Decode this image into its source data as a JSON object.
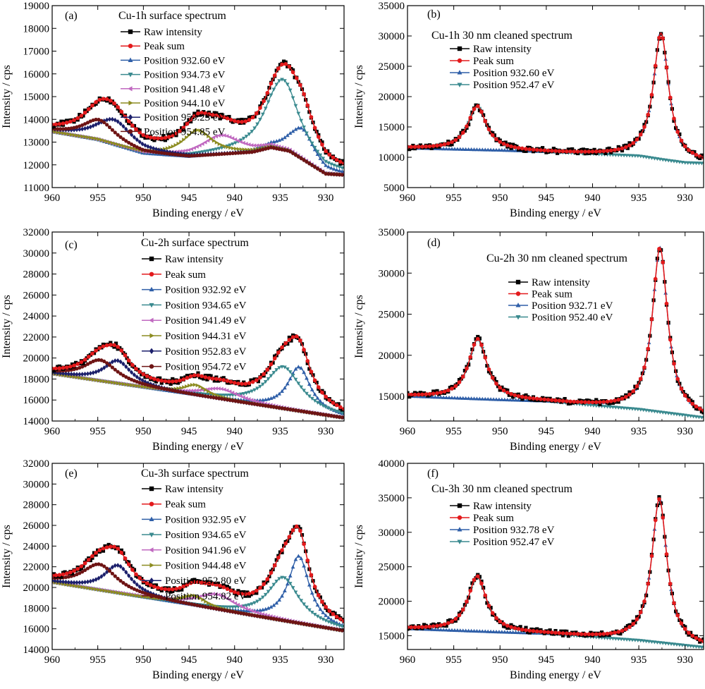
{
  "figure": {
    "xlabel": "Binding energy / eV",
    "ylabel": "Intensity / cps"
  },
  "chart_data": [
    {
      "panel": "a",
      "tag": "(a)",
      "type": "line",
      "title": "Cu-1h surface spectrum",
      "xlabel": "Binding energy / eV",
      "ylabel": "Intensity / cps",
      "x_reversed": true,
      "xlim": [
        960,
        928
      ],
      "ylim": [
        11000,
        19000
      ],
      "xticks": [
        960,
        955,
        950,
        945,
        940,
        935,
        930
      ],
      "yticks": [
        11000,
        12000,
        13000,
        14000,
        15000,
        16000,
        17000,
        18000,
        19000
      ],
      "background": [
        [
          960,
          13450
        ],
        [
          955,
          13100
        ],
        [
          950,
          12500
        ],
        [
          945,
          12350
        ],
        [
          938,
          12550
        ],
        [
          936,
          12750
        ],
        [
          934,
          12600
        ],
        [
          930,
          11600
        ],
        [
          928,
          11550
        ]
      ],
      "components": [
        {
          "name": "Raw intensity",
          "color": "#000000",
          "marker": "square"
        },
        {
          "name": "Peak sum",
          "color": "#e31a1c",
          "marker": "circle"
        },
        {
          "name": "Position 932.60 eV",
          "color": "#2f5fa8",
          "marker": "triangle-up",
          "center": 932.6,
          "height": 1350,
          "width": 1.6
        },
        {
          "name": "Position 934.73 eV",
          "color": "#3a8a8f",
          "marker": "triangle-down",
          "center": 934.73,
          "height": 3100,
          "width": 2.2
        },
        {
          "name": "Position 941.48 eV",
          "color": "#c069c0",
          "marker": "triangle-left",
          "center": 941.48,
          "height": 850,
          "width": 2.6
        },
        {
          "name": "Position 944.10 eV",
          "color": "#8c8c20",
          "marker": "triangle-right",
          "center": 944.1,
          "height": 1150,
          "width": 2.0
        },
        {
          "name": "Position 953.23 eV",
          "color": "#1b1f6b",
          "marker": "diamond",
          "center": 953.23,
          "height": 1100,
          "width": 2.4
        },
        {
          "name": "Position 954.85 eV",
          "color": "#6e1414",
          "marker": "circle",
          "center": 954.85,
          "height": 900,
          "width": 2.2
        }
      ]
    },
    {
      "panel": "b",
      "tag": "(b)",
      "type": "line",
      "title": "Cu-1h 30 nm cleaned spectrum",
      "xlabel": "Binding energy / eV",
      "ylabel": "Intensity / cps",
      "x_reversed": true,
      "xlim": [
        960,
        928
      ],
      "ylim": [
        5000,
        35000
      ],
      "xticks": [
        960,
        955,
        950,
        945,
        940,
        935,
        930
      ],
      "yticks": [
        5000,
        10000,
        15000,
        20000,
        25000,
        30000,
        35000
      ],
      "background": [
        [
          960,
          11500
        ],
        [
          950,
          11100
        ],
        [
          940,
          10500
        ],
        [
          935,
          10200
        ],
        [
          932,
          9500
        ],
        [
          930,
          9100
        ],
        [
          928,
          9000
        ]
      ],
      "components": [
        {
          "name": "Raw intensity",
          "color": "#000000",
          "marker": "square"
        },
        {
          "name": "Peak sum",
          "color": "#e31a1c",
          "marker": "circle"
        },
        {
          "name": "Position 932.60 eV",
          "color": "#2f5fa8",
          "marker": "triangle-up",
          "center": 932.6,
          "height": 20800,
          "width": 1.0
        },
        {
          "name": "Position 952.47 eV",
          "color": "#3a8a8f",
          "marker": "triangle-down",
          "center": 952.47,
          "height": 7200,
          "width": 1.2
        }
      ]
    },
    {
      "panel": "c",
      "tag": "(c)",
      "type": "line",
      "title": "Cu-2h surface spectrum",
      "xlabel": "Binding energy / eV",
      "ylabel": "Intensity / cps",
      "x_reversed": true,
      "xlim": [
        960,
        928
      ],
      "ylim": [
        14000,
        32000
      ],
      "xticks": [
        960,
        955,
        950,
        945,
        940,
        935,
        930
      ],
      "yticks": [
        14000,
        16000,
        18000,
        20000,
        22000,
        24000,
        26000,
        28000,
        30000,
        32000
      ],
      "background": [
        [
          960,
          18500
        ],
        [
          928,
          14300
        ]
      ],
      "components": [
        {
          "name": "Raw intensity",
          "color": "#000000",
          "marker": "square"
        },
        {
          "name": "Peak sum",
          "color": "#e31a1c",
          "marker": "circle"
        },
        {
          "name": "Position 932.92 eV",
          "color": "#2f5fa8",
          "marker": "triangle-up",
          "center": 932.92,
          "height": 4200,
          "width": 1.5
        },
        {
          "name": "Position 934.65 eV",
          "color": "#3a8a8f",
          "marker": "triangle-down",
          "center": 934.65,
          "height": 4000,
          "width": 2.3
        },
        {
          "name": "Position 941.49 eV",
          "color": "#c069c0",
          "marker": "triangle-left",
          "center": 941.49,
          "height": 1000,
          "width": 2.6
        },
        {
          "name": "Position 944.31 eV",
          "color": "#8c8c20",
          "marker": "triangle-right",
          "center": 944.31,
          "height": 1000,
          "width": 1.6
        },
        {
          "name": "Position 952.83 eV",
          "color": "#1b1f6b",
          "marker": "diamond",
          "center": 952.83,
          "height": 2200,
          "width": 1.8
        },
        {
          "name": "Position 954.72 eV",
          "color": "#6e1414",
          "marker": "circle",
          "center": 954.72,
          "height": 2000,
          "width": 2.2
        }
      ]
    },
    {
      "panel": "d",
      "tag": "(d)",
      "type": "line",
      "title": "Cu-2h 30 nm cleaned spectrum",
      "xlabel": "Binding energy / eV",
      "ylabel": "Intensity / cps",
      "x_reversed": true,
      "xlim": [
        960,
        928
      ],
      "ylim": [
        12000,
        35000
      ],
      "xticks": [
        960,
        955,
        950,
        945,
        940,
        935,
        930
      ],
      "yticks": [
        15000,
        20000,
        25000,
        30000,
        35000
      ],
      "background": [
        [
          960,
          15000
        ],
        [
          945,
          14300
        ],
        [
          935,
          13400
        ],
        [
          928,
          12400
        ]
      ],
      "components": [
        {
          "name": "Raw intensity",
          "color": "#000000",
          "marker": "square"
        },
        {
          "name": "Peak sum",
          "color": "#e31a1c",
          "marker": "circle"
        },
        {
          "name": "Position 932.71 eV",
          "color": "#2f5fa8",
          "marker": "triangle-up",
          "center": 932.71,
          "height": 20000,
          "width": 1.0
        },
        {
          "name": "Position 952.40 eV",
          "color": "#3a8a8f",
          "marker": "triangle-down",
          "center": 952.4,
          "height": 7300,
          "width": 1.2
        }
      ]
    },
    {
      "panel": "e",
      "tag": "(e)",
      "type": "line",
      "title": "Cu-3h surface spectrum",
      "xlabel": "Binding energy / eV",
      "ylabel": "Intensity / cps",
      "x_reversed": true,
      "xlim": [
        960,
        928
      ],
      "ylim": [
        14000,
        32000
      ],
      "xticks": [
        960,
        955,
        950,
        945,
        940,
        935,
        930
      ],
      "yticks": [
        14000,
        16000,
        18000,
        20000,
        22000,
        24000,
        26000,
        28000,
        30000,
        32000
      ],
      "background": [
        [
          960,
          20500
        ],
        [
          928,
          15800
        ]
      ],
      "components": [
        {
          "name": "Raw intensity",
          "color": "#000000",
          "marker": "square"
        },
        {
          "name": "Peak sum",
          "color": "#e31a1c",
          "marker": "circle"
        },
        {
          "name": "Position 932.95 eV",
          "color": "#2f5fa8",
          "marker": "triangle-up",
          "center": 932.95,
          "height": 6500,
          "width": 1.4
        },
        {
          "name": "Position 934.65 eV",
          "color": "#3a8a8f",
          "marker": "triangle-down",
          "center": 934.65,
          "height": 4200,
          "width": 2.1
        },
        {
          "name": "Position 941.96 eV",
          "color": "#c069c0",
          "marker": "triangle-left",
          "center": 941.96,
          "height": 1500,
          "width": 2.6
        },
        {
          "name": "Position 944.48 eV",
          "color": "#8c8c20",
          "marker": "triangle-right",
          "center": 944.48,
          "height": 1000,
          "width": 1.6
        },
        {
          "name": "Position 952.80 eV",
          "color": "#1b1f6b",
          "marker": "diamond",
          "center": 952.8,
          "height": 2700,
          "width": 1.8
        },
        {
          "name": "Position 954.82 eV",
          "color": "#6e1414",
          "marker": "circle",
          "center": 954.82,
          "height": 2500,
          "width": 2.3
        }
      ]
    },
    {
      "panel": "f",
      "tag": "(f)",
      "type": "line",
      "title": "Cu-3h 30 nm cleaned spectrum",
      "xlabel": "Binding energy / eV",
      "ylabel": "Intensity / cps",
      "x_reversed": true,
      "xlim": [
        960,
        928
      ],
      "ylim": [
        13000,
        40000
      ],
      "xticks": [
        960,
        955,
        950,
        945,
        940,
        935,
        930
      ],
      "yticks": [
        15000,
        20000,
        25000,
        30000,
        35000,
        40000
      ],
      "background": [
        [
          960,
          16000
        ],
        [
          945,
          15200
        ],
        [
          935,
          14300
        ],
        [
          928,
          13300
        ]
      ],
      "components": [
        {
          "name": "Raw intensity",
          "color": "#000000",
          "marker": "square"
        },
        {
          "name": "Peak sum",
          "color": "#e31a1c",
          "marker": "circle"
        },
        {
          "name": "Position 932.78 eV",
          "color": "#2f5fa8",
          "marker": "triangle-up",
          "center": 932.78,
          "height": 20800,
          "width": 1.0
        },
        {
          "name": "Position 952.47 eV",
          "color": "#3a8a8f",
          "marker": "triangle-down",
          "center": 952.47,
          "height": 8000,
          "width": 1.2
        }
      ]
    }
  ]
}
